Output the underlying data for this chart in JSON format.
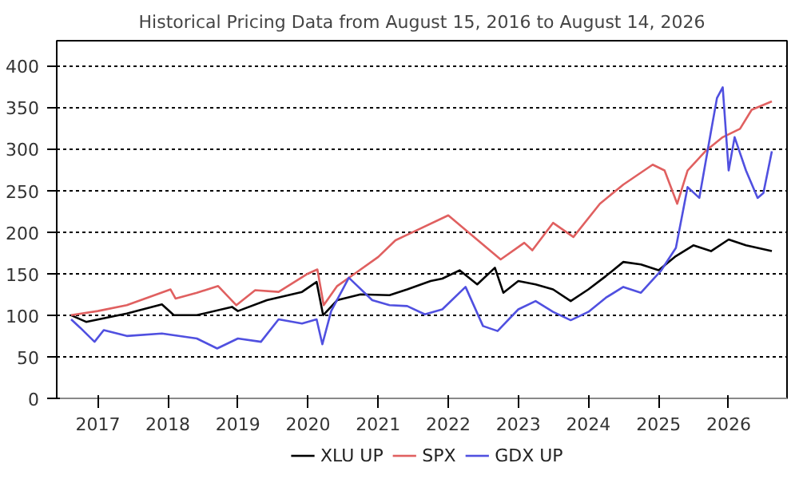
{
  "chart_data": {
    "type": "line",
    "title": "Historical Pricing Data from August 15, 2016 to August 14, 2026",
    "xlim": [
      "2016-06-01",
      "2026-11-01"
    ],
    "ylim": [
      0,
      430
    ],
    "xticks": [
      {
        "value": "2017-01-01",
        "label": "2017"
      },
      {
        "value": "2018-01-01",
        "label": "2018"
      },
      {
        "value": "2019-01-01",
        "label": "2019"
      },
      {
        "value": "2020-01-01",
        "label": "2020"
      },
      {
        "value": "2021-01-01",
        "label": "2021"
      },
      {
        "value": "2022-01-01",
        "label": "2022"
      },
      {
        "value": "2023-01-01",
        "label": "2023"
      },
      {
        "value": "2024-01-01",
        "label": "2024"
      },
      {
        "value": "2025-01-01",
        "label": "2025"
      },
      {
        "value": "2026-01-01",
        "label": "2026"
      }
    ],
    "yticks": [
      0,
      50,
      100,
      150,
      200,
      250,
      300,
      350,
      400
    ],
    "grid": "y",
    "legend": "bottom",
    "line_style": "solid",
    "series": [
      {
        "name": "XLU UP",
        "color": "#000000",
        "x": [
          "2016-08-15",
          "2016-11-01",
          "2017-06-01",
          "2017-12-01",
          "2018-02-01",
          "2018-06-01",
          "2018-12-01",
          "2019-01-01",
          "2019-06-01",
          "2019-12-01",
          "2020-02-15",
          "2020-03-20",
          "2020-06-01",
          "2020-10-01",
          "2021-03-01",
          "2021-06-01",
          "2021-10-01",
          "2021-12-01",
          "2022-03-01",
          "2022-06-01",
          "2022-09-01",
          "2022-10-15",
          "2023-01-01",
          "2023-04-01",
          "2023-07-01",
          "2023-10-01",
          "2024-01-01",
          "2024-04-01",
          "2024-07-01",
          "2024-10-01",
          "2025-01-01",
          "2025-04-01",
          "2025-07-01",
          "2025-10-01",
          "2026-01-01",
          "2026-04-01",
          "2026-08-14"
        ],
        "values": [
          100,
          92,
          102,
          113,
          100,
          100,
          110,
          105,
          118,
          128,
          140,
          100,
          118,
          125,
          124,
          131,
          141,
          144,
          154,
          137,
          157,
          127,
          141,
          137,
          131,
          117,
          131,
          147,
          164,
          161,
          154,
          171,
          184,
          177,
          191,
          184,
          177
        ]
      },
      {
        "name": "SPX",
        "color": "#e06060",
        "x": [
          "2016-08-15",
          "2017-01-01",
          "2017-06-01",
          "2018-01-15",
          "2018-02-10",
          "2018-06-01",
          "2018-09-20",
          "2018-12-24",
          "2019-04-01",
          "2019-08-01",
          "2020-01-01",
          "2020-02-19",
          "2020-03-23",
          "2020-06-01",
          "2020-09-01",
          "2021-01-01",
          "2021-04-01",
          "2022-01-01",
          "2022-10-01",
          "2023-02-01",
          "2023-03-15",
          "2023-07-01",
          "2023-10-15",
          "2024-03-01",
          "2024-07-01",
          "2024-12-01",
          "2025-02-01",
          "2025-04-08",
          "2025-06-01",
          "2025-09-01",
          "2025-12-01",
          "2026-03-01",
          "2026-05-01",
          "2026-08-14"
        ],
        "values": [
          100,
          105,
          112,
          131,
          120,
          127,
          135,
          112,
          130,
          128,
          150,
          155,
          112,
          135,
          150,
          170,
          190,
          220,
          167,
          187,
          178,
          211,
          194,
          234,
          257,
          281,
          274,
          234,
          274,
          297,
          314,
          324,
          347,
          357
        ]
      },
      {
        "name": "GDX UP",
        "color": "#5050e0",
        "x": [
          "2016-08-15",
          "2016-10-01",
          "2016-12-15",
          "2017-02-01",
          "2017-06-01",
          "2017-12-01",
          "2018-06-01",
          "2018-09-15",
          "2019-01-01",
          "2019-05-01",
          "2019-08-01",
          "2019-12-01",
          "2020-02-15",
          "2020-03-16",
          "2020-05-01",
          "2020-08-01",
          "2020-12-01",
          "2021-03-01",
          "2021-06-01",
          "2021-09-01",
          "2021-12-01",
          "2022-04-01",
          "2022-07-01",
          "2022-09-15",
          "2023-01-01",
          "2023-04-01",
          "2023-07-01",
          "2023-10-01",
          "2024-01-01",
          "2024-04-01",
          "2024-07-01",
          "2024-10-01",
          "2025-01-15",
          "2025-04-01",
          "2025-06-01",
          "2025-08-01",
          "2025-10-01",
          "2025-11-01",
          "2025-12-01",
          "2026-01-01",
          "2026-02-01",
          "2026-04-01",
          "2026-06-01",
          "2026-07-01",
          "2026-08-14"
        ],
        "values": [
          95,
          85,
          68,
          82,
          75,
          78,
          72,
          60,
          72,
          68,
          95,
          90,
          95,
          65,
          105,
          145,
          118,
          112,
          111,
          101,
          107,
          134,
          87,
          81,
          107,
          117,
          104,
          94,
          104,
          121,
          134,
          127,
          154,
          181,
          254,
          241,
          321,
          361,
          374,
          274,
          314,
          274,
          241,
          247,
          297
        ]
      }
    ]
  }
}
